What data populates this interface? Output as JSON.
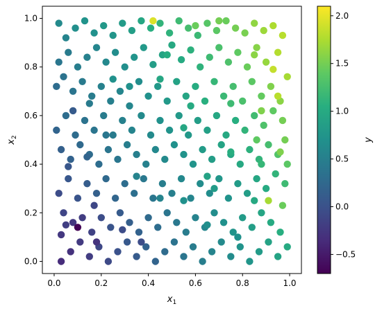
{
  "chart_data": {
    "type": "scatter",
    "title": "",
    "xlabel_var": "x",
    "xlabel_sub": "1",
    "ylabel_var": "x",
    "ylabel_sub": "2",
    "colorbar_label": "y",
    "xlim": [
      -0.05,
      1.05
    ],
    "ylim": [
      -0.05,
      1.05
    ],
    "x_ticks": [
      0.0,
      0.2,
      0.4,
      0.6,
      0.8,
      1.0
    ],
    "x_tick_labels": [
      "0.0",
      "0.2",
      "0.4",
      "0.6",
      "0.8",
      "1.0"
    ],
    "y_ticks": [
      0.0,
      0.2,
      0.4,
      0.6,
      0.8,
      1.0
    ],
    "y_tick_labels": [
      "0.0",
      "0.2",
      "0.4",
      "0.6",
      "0.8",
      "1.0"
    ],
    "color_range": [
      -0.7,
      2.1
    ],
    "colorbar_ticks": [
      -0.5,
      0.0,
      0.5,
      1.0,
      1.5,
      2.0
    ],
    "colorbar_tick_labels": [
      "−0.5",
      "0.0",
      "0.5",
      "1.0",
      "1.5",
      "2.0"
    ],
    "colormap": "viridis",
    "grid": false,
    "series": [
      {
        "points": [
          [
            0.02,
            0.98,
            0.62
          ],
          [
            0.05,
            0.92,
            0.55
          ],
          [
            0.09,
            0.96,
            0.68
          ],
          [
            0.13,
            0.99,
            0.72
          ],
          [
            0.17,
            0.94,
            0.7
          ],
          [
            0.21,
            0.97,
            0.78
          ],
          [
            0.25,
            0.93,
            0.75
          ],
          [
            0.29,
            0.98,
            0.82
          ],
          [
            0.33,
            0.95,
            0.86
          ],
          [
            0.37,
            0.99,
            0.95
          ],
          [
            0.41,
            0.96,
            1.05
          ],
          [
            0.45,
            0.98,
            1.12
          ],
          [
            0.49,
            0.94,
            1.1
          ],
          [
            0.53,
            0.99,
            1.2
          ],
          [
            0.57,
            0.96,
            1.25
          ],
          [
            0.61,
            0.93,
            1.18
          ],
          [
            0.65,
            0.98,
            1.35
          ],
          [
            0.69,
            0.95,
            1.38
          ],
          [
            0.73,
            0.99,
            1.45
          ],
          [
            0.77,
            0.96,
            1.5
          ],
          [
            0.81,
            0.94,
            1.52
          ],
          [
            0.85,
            0.98,
            1.62
          ],
          [
            0.89,
            0.95,
            1.68
          ],
          [
            0.93,
            0.97,
            1.75
          ],
          [
            0.97,
            0.93,
            1.8
          ],
          [
            0.95,
            0.86,
            1.78
          ],
          [
            0.9,
            0.82,
            1.65
          ],
          [
            0.86,
            0.88,
            1.58
          ],
          [
            0.82,
            0.8,
            1.45
          ],
          [
            0.78,
            0.86,
            1.4
          ],
          [
            0.74,
            0.82,
            1.3
          ],
          [
            0.7,
            0.88,
            1.28
          ],
          [
            0.66,
            0.84,
            1.2
          ],
          [
            0.62,
            0.8,
            1.1
          ],
          [
            0.58,
            0.87,
            1.08
          ],
          [
            0.54,
            0.83,
            1.0
          ],
          [
            0.5,
            0.89,
            0.98
          ],
          [
            0.46,
            0.85,
            0.92
          ],
          [
            0.42,
            0.81,
            0.85
          ],
          [
            0.38,
            0.88,
            0.8
          ],
          [
            0.34,
            0.84,
            0.74
          ],
          [
            0.3,
            0.8,
            0.68
          ],
          [
            0.26,
            0.86,
            0.66
          ],
          [
            0.22,
            0.82,
            0.6
          ],
          [
            0.18,
            0.88,
            0.58
          ],
          [
            0.14,
            0.84,
            0.52
          ],
          [
            0.1,
            0.8,
            0.48
          ],
          [
            0.06,
            0.86,
            0.45
          ],
          [
            0.02,
            0.82,
            0.4
          ],
          [
            0.01,
            0.72,
            0.3
          ],
          [
            0.04,
            0.76,
            0.36
          ],
          [
            0.08,
            0.7,
            0.38
          ],
          [
            0.12,
            0.74,
            0.44
          ],
          [
            0.16,
            0.68,
            0.46
          ],
          [
            0.2,
            0.72,
            0.52
          ],
          [
            0.24,
            0.66,
            0.5
          ],
          [
            0.28,
            0.7,
            0.56
          ],
          [
            0.32,
            0.64,
            0.58
          ],
          [
            0.36,
            0.74,
            0.66
          ],
          [
            0.4,
            0.68,
            0.7
          ],
          [
            0.44,
            0.72,
            0.78
          ],
          [
            0.48,
            0.66,
            0.8
          ],
          [
            0.52,
            0.74,
            0.9
          ],
          [
            0.56,
            0.68,
            0.94
          ],
          [
            0.6,
            0.72,
            1.02
          ],
          [
            0.64,
            0.66,
            1.06
          ],
          [
            0.68,
            0.74,
            1.15
          ],
          [
            0.72,
            0.68,
            1.18
          ],
          [
            0.76,
            0.72,
            1.25
          ],
          [
            0.8,
            0.66,
            1.28
          ],
          [
            0.84,
            0.74,
            1.38
          ],
          [
            0.88,
            0.68,
            1.42
          ],
          [
            0.92,
            0.72,
            1.55
          ],
          [
            0.96,
            0.66,
            1.6
          ],
          [
            0.99,
            0.76,
            1.72
          ],
          [
            0.97,
            0.58,
            1.5
          ],
          [
            0.93,
            0.62,
            1.4
          ],
          [
            0.89,
            0.56,
            1.3
          ],
          [
            0.85,
            0.6,
            1.22
          ],
          [
            0.81,
            0.54,
            1.12
          ],
          [
            0.77,
            0.58,
            1.05
          ],
          [
            0.73,
            0.52,
            0.98
          ],
          [
            0.69,
            0.6,
            0.96
          ],
          [
            0.65,
            0.54,
            0.88
          ],
          [
            0.61,
            0.58,
            0.85
          ],
          [
            0.57,
            0.52,
            0.78
          ],
          [
            0.53,
            0.6,
            0.8
          ],
          [
            0.49,
            0.54,
            0.72
          ],
          [
            0.45,
            0.58,
            0.7
          ],
          [
            0.41,
            0.52,
            0.62
          ],
          [
            0.37,
            0.6,
            0.62
          ],
          [
            0.33,
            0.54,
            0.55
          ],
          [
            0.29,
            0.58,
            0.52
          ],
          [
            0.25,
            0.52,
            0.45
          ],
          [
            0.21,
            0.6,
            0.46
          ],
          [
            0.17,
            0.54,
            0.38
          ],
          [
            0.13,
            0.58,
            0.36
          ],
          [
            0.09,
            0.52,
            0.28
          ],
          [
            0.05,
            0.6,
            0.3
          ],
          [
            0.01,
            0.54,
            0.2
          ],
          [
            0.03,
            0.46,
            0.15
          ],
          [
            0.07,
            0.42,
            0.18
          ],
          [
            0.11,
            0.48,
            0.25
          ],
          [
            0.15,
            0.44,
            0.28
          ],
          [
            0.19,
            0.4,
            0.3
          ],
          [
            0.23,
            0.46,
            0.38
          ],
          [
            0.27,
            0.42,
            0.4
          ],
          [
            0.31,
            0.48,
            0.48
          ],
          [
            0.35,
            0.44,
            0.5
          ],
          [
            0.39,
            0.4,
            0.52
          ],
          [
            0.43,
            0.46,
            0.6
          ],
          [
            0.47,
            0.42,
            0.62
          ],
          [
            0.51,
            0.48,
            0.7
          ],
          [
            0.55,
            0.44,
            0.72
          ],
          [
            0.59,
            0.4,
            0.74
          ],
          [
            0.63,
            0.46,
            0.82
          ],
          [
            0.67,
            0.42,
            0.84
          ],
          [
            0.71,
            0.48,
            0.92
          ],
          [
            0.75,
            0.44,
            0.95
          ],
          [
            0.79,
            0.4,
            0.98
          ],
          [
            0.83,
            0.46,
            1.08
          ],
          [
            0.87,
            0.42,
            1.12
          ],
          [
            0.91,
            0.48,
            1.25
          ],
          [
            0.95,
            0.44,
            1.32
          ],
          [
            0.99,
            0.4,
            1.38
          ],
          [
            0.98,
            0.32,
            1.2
          ],
          [
            0.94,
            0.36,
            1.12
          ],
          [
            0.9,
            0.3,
            1.0
          ],
          [
            0.86,
            0.34,
            0.95
          ],
          [
            0.82,
            0.28,
            0.85
          ],
          [
            0.78,
            0.32,
            0.82
          ],
          [
            0.74,
            0.26,
            0.72
          ],
          [
            0.7,
            0.34,
            0.76
          ],
          [
            0.66,
            0.28,
            0.66
          ],
          [
            0.62,
            0.32,
            0.64
          ],
          [
            0.58,
            0.26,
            0.56
          ],
          [
            0.54,
            0.34,
            0.6
          ],
          [
            0.5,
            0.28,
            0.5
          ],
          [
            0.46,
            0.32,
            0.48
          ],
          [
            0.42,
            0.26,
            0.4
          ],
          [
            0.38,
            0.34,
            0.42
          ],
          [
            0.34,
            0.28,
            0.32
          ],
          [
            0.3,
            0.32,
            0.3
          ],
          [
            0.26,
            0.26,
            0.22
          ],
          [
            0.22,
            0.34,
            0.25
          ],
          [
            0.18,
            0.28,
            0.15
          ],
          [
            0.14,
            0.32,
            0.12
          ],
          [
            0.1,
            0.26,
            0.02
          ],
          [
            0.06,
            0.34,
            0.06
          ],
          [
            0.02,
            0.28,
            -0.05
          ],
          [
            0.04,
            0.2,
            -0.12
          ],
          [
            0.08,
            0.16,
            -0.25
          ],
          [
            0.1,
            0.14,
            -0.68
          ],
          [
            0.12,
            0.18,
            -0.2
          ],
          [
            0.16,
            0.12,
            -0.15
          ],
          [
            0.2,
            0.18,
            -0.05
          ],
          [
            0.24,
            0.14,
            0.02
          ],
          [
            0.28,
            0.2,
            0.1
          ],
          [
            0.32,
            0.16,
            0.14
          ],
          [
            0.36,
            0.12,
            0.18
          ],
          [
            0.4,
            0.18,
            0.26
          ],
          [
            0.44,
            0.14,
            0.3
          ],
          [
            0.48,
            0.2,
            0.38
          ],
          [
            0.52,
            0.16,
            0.42
          ],
          [
            0.56,
            0.12,
            0.46
          ],
          [
            0.6,
            0.18,
            0.54
          ],
          [
            0.64,
            0.14,
            0.58
          ],
          [
            0.68,
            0.2,
            0.66
          ],
          [
            0.72,
            0.16,
            0.7
          ],
          [
            0.76,
            0.12,
            0.74
          ],
          [
            0.8,
            0.18,
            0.82
          ],
          [
            0.84,
            0.14,
            0.86
          ],
          [
            0.88,
            0.2,
            0.94
          ],
          [
            0.92,
            0.16,
            1.0
          ],
          [
            0.96,
            0.12,
            1.05
          ],
          [
            0.99,
            0.06,
            1.0
          ],
          [
            0.95,
            0.02,
            0.92
          ],
          [
            0.91,
            0.08,
            0.9
          ],
          [
            0.87,
            0.04,
            0.82
          ],
          [
            0.83,
            0.0,
            0.75
          ],
          [
            0.79,
            0.06,
            0.72
          ],
          [
            0.75,
            0.02,
            0.64
          ],
          [
            0.71,
            0.08,
            0.62
          ],
          [
            0.67,
            0.04,
            0.55
          ],
          [
            0.63,
            0.0,
            0.48
          ],
          [
            0.59,
            0.06,
            0.46
          ],
          [
            0.55,
            0.02,
            0.38
          ],
          [
            0.51,
            0.08,
            0.36
          ],
          [
            0.47,
            0.04,
            0.28
          ],
          [
            0.43,
            0.0,
            0.2
          ],
          [
            0.39,
            0.06,
            0.18
          ],
          [
            0.35,
            0.02,
            0.1
          ],
          [
            0.31,
            0.08,
            0.08
          ],
          [
            0.27,
            0.04,
            0.0
          ],
          [
            0.23,
            0.0,
            -0.08
          ],
          [
            0.19,
            0.06,
            -0.1
          ],
          [
            0.15,
            0.02,
            -0.2
          ],
          [
            0.11,
            0.08,
            -0.22
          ],
          [
            0.07,
            0.04,
            -0.3
          ],
          [
            0.03,
            0.0,
            -0.35
          ],
          [
            0.42,
            0.99,
            1.95
          ],
          [
            0.91,
            0.25,
            1.72
          ],
          [
            0.97,
            0.23,
            1.45
          ],
          [
            0.93,
            0.79,
            1.85
          ],
          [
            0.95,
            0.68,
            1.8
          ],
          [
            0.88,
            0.62,
            1.55
          ],
          [
            0.96,
            0.45,
            1.55
          ],
          [
            0.86,
            0.5,
            1.4
          ],
          [
            0.6,
            0.97,
            1.45
          ],
          [
            0.7,
            0.99,
            1.5
          ],
          [
            0.08,
            0.62,
            0.1
          ],
          [
            0.06,
            0.39,
            0.05
          ],
          [
            0.17,
            0.23,
            -0.1
          ],
          [
            0.03,
            0.11,
            -0.25
          ],
          [
            0.29,
            0.13,
            -0.05
          ],
          [
            0.37,
            0.08,
            -0.05
          ],
          [
            0.14,
            0.43,
            0.2
          ],
          [
            0.45,
            0.26,
            0.55
          ],
          [
            0.55,
            0.55,
            0.95
          ],
          [
            0.65,
            0.35,
            0.9
          ],
          [
            0.75,
            0.65,
            1.2
          ],
          [
            0.85,
            0.85,
            1.6
          ],
          [
            0.35,
            0.35,
            0.55
          ],
          [
            0.25,
            0.75,
            0.7
          ],
          [
            0.15,
            0.65,
            0.45
          ],
          [
            0.45,
            0.75,
            0.95
          ],
          [
            0.55,
            0.25,
            0.7
          ],
          [
            0.65,
            0.15,
            0.68
          ],
          [
            0.75,
            0.45,
            1.05
          ],
          [
            0.85,
            0.25,
            0.98
          ],
          [
            0.05,
            0.15,
            -0.18
          ],
          [
            0.18,
            0.08,
            -0.28
          ],
          [
            0.22,
            0.52,
            0.4
          ],
          [
            0.32,
            0.72,
            0.7
          ],
          [
            0.48,
            0.85,
            1.02
          ],
          [
            0.58,
            0.64,
            1.0
          ],
          [
            0.68,
            0.3,
            0.82
          ],
          [
            0.78,
            0.1,
            0.7
          ],
          [
            0.88,
            0.4,
            1.15
          ],
          [
            0.98,
            0.5,
            1.5
          ]
        ]
      }
    ]
  }
}
